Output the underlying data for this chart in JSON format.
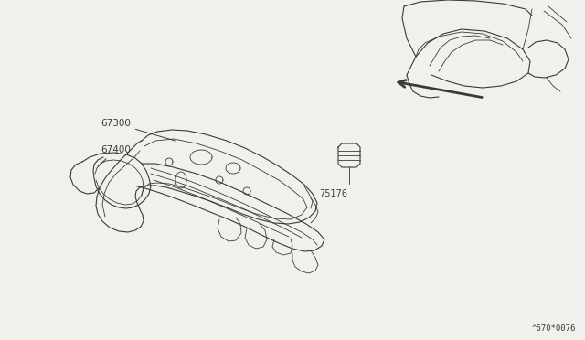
{
  "background_color": "#f2f0ec",
  "line_color": "#3a3a3a",
  "label_color": "#3a3a3a",
  "watermark": "^670*0076",
  "fig_w": 6.4,
  "fig_h": 3.72,
  "dpi": 100
}
